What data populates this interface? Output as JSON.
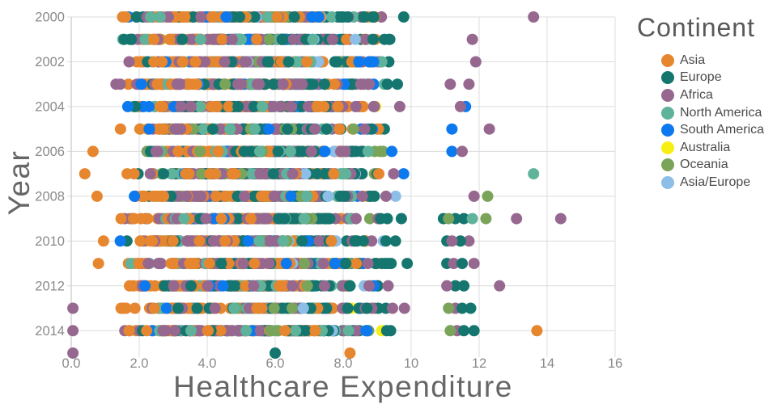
{
  "chart_data": {
    "type": "scatter",
    "variant": "strip-plot",
    "title": "",
    "xlabel": "Healthcare Expenditure",
    "ylabel": "Year",
    "legend": {
      "title": "Continent",
      "position": "top-right",
      "items": [
        {
          "label": "Asia",
          "color": "#E6862E"
        },
        {
          "label": "Europe",
          "color": "#15766F"
        },
        {
          "label": "Africa",
          "color": "#97688F"
        },
        {
          "label": "North America",
          "color": "#5FB39B"
        },
        {
          "label": "South America",
          "color": "#0C79EE"
        },
        {
          "label": "Australia",
          "color": "#F7EF13"
        },
        {
          "label": "Oceania",
          "color": "#7AA45A"
        },
        {
          "label": "Asia/Europe",
          "color": "#8CBEE8"
        }
      ]
    },
    "xlim": [
      0,
      16
    ],
    "ylim": [
      2000,
      2015
    ],
    "grid": true,
    "x_ticks": [
      {
        "value": 0,
        "label": "0.0"
      },
      {
        "value": 2,
        "label": "2.0"
      },
      {
        "value": 4,
        "label": "4.0"
      },
      {
        "value": 6,
        "label": "6.0"
      },
      {
        "value": 8,
        "label": "8.0"
      },
      {
        "value": 10,
        "label": "10"
      },
      {
        "value": 12,
        "label": "12"
      },
      {
        "value": 14,
        "label": "14"
      },
      {
        "value": 16,
        "label": "16"
      }
    ],
    "y_ticks": [
      {
        "value": 2000,
        "label": "2000"
      },
      {
        "value": 2002,
        "label": "2002"
      },
      {
        "value": 2004,
        "label": "2004"
      },
      {
        "value": 2006,
        "label": "2006"
      },
      {
        "value": 2008,
        "label": "2008"
      },
      {
        "value": 2010,
        "label": "2010"
      },
      {
        "value": 2012,
        "label": "2012"
      },
      {
        "value": 2014,
        "label": "2014"
      }
    ],
    "bulk_years": [
      2000,
      2014
    ],
    "series": [
      {
        "name": "Asia",
        "color": "#E6862E",
        "points_per_year": 45,
        "min": 1.0,
        "mode": 3.2,
        "max": 9.6
      },
      {
        "name": "Europe",
        "color": "#15766F",
        "points_per_year": 40,
        "min": 1.3,
        "mode": 6.8,
        "max": 10.0
      },
      {
        "name": "Africa",
        "color": "#97688F",
        "points_per_year": 48,
        "min": 1.2,
        "mode": 4.3,
        "max": 10.0
      },
      {
        "name": "North America",
        "color": "#5FB39B",
        "points_per_year": 17,
        "min": 1.1,
        "mode": 5.3,
        "max": 9.7
      },
      {
        "name": "South America",
        "color": "#0C79EE",
        "points_per_year": 12,
        "min": 1.3,
        "mode": 5.8,
        "max": 9.9
      },
      {
        "name": "Australia",
        "color": "#F7EF13",
        "points_per_year": 1,
        "min": 7.8,
        "mode": 8.6,
        "max": 9.4
      },
      {
        "name": "Oceania",
        "color": "#7AA45A",
        "points_per_year": 8,
        "min": 2.0,
        "mode": 5.0,
        "max": 9.9
      },
      {
        "name": "Asia/Europe",
        "color": "#8CBEE8",
        "points_per_year": 4,
        "min": 4.0,
        "mode": 7.4,
        "max": 9.8
      }
    ],
    "extra_points": [
      {
        "year": 2000,
        "continent": "Africa",
        "x": 13.6
      },
      {
        "year": 2001,
        "continent": "Africa",
        "x": 11.8
      },
      {
        "year": 2002,
        "continent": "Africa",
        "x": 11.9
      },
      {
        "year": 2003,
        "continent": "Africa",
        "x": 11.15
      },
      {
        "year": 2003,
        "continent": "Africa",
        "x": 11.7
      },
      {
        "year": 2004,
        "continent": "Africa",
        "x": 11.45
      },
      {
        "year": 2004,
        "continent": "South America",
        "x": 11.6
      },
      {
        "year": 2005,
        "continent": "South America",
        "x": 11.2
      },
      {
        "year": 2005,
        "continent": "Africa",
        "x": 12.3
      },
      {
        "year": 2006,
        "continent": "South America",
        "x": 11.2
      },
      {
        "year": 2006,
        "continent": "Africa",
        "x": 11.5
      },
      {
        "year": 2006,
        "continent": "Asia",
        "x": 0.64
      },
      {
        "year": 2007,
        "continent": "North America",
        "x": 13.6
      },
      {
        "year": 2007,
        "continent": "Asia",
        "x": 0.4
      },
      {
        "year": 2008,
        "continent": "Africa",
        "x": 11.85
      },
      {
        "year": 2008,
        "continent": "Oceania",
        "x": 12.25
      },
      {
        "year": 2008,
        "continent": "Asia",
        "x": 0.76
      },
      {
        "year": 2009,
        "continent": "Europe",
        "x": 10.95
      },
      {
        "year": 2009,
        "continent": "Oceania",
        "x": 11.1
      },
      {
        "year": 2009,
        "continent": "Europe",
        "x": 11.3
      },
      {
        "year": 2009,
        "continent": "Europe",
        "x": 11.55
      },
      {
        "year": 2009,
        "continent": "North America",
        "x": 11.8
      },
      {
        "year": 2009,
        "continent": "Oceania",
        "x": 12.2
      },
      {
        "year": 2009,
        "continent": "Africa",
        "x": 13.1
      },
      {
        "year": 2009,
        "continent": "Africa",
        "x": 14.4
      },
      {
        "year": 2010,
        "continent": "Europe",
        "x": 11.05
      },
      {
        "year": 2010,
        "continent": "Africa",
        "x": 11.2
      },
      {
        "year": 2010,
        "continent": "Europe",
        "x": 11.45
      },
      {
        "year": 2010,
        "continent": "Africa",
        "x": 11.7
      },
      {
        "year": 2010,
        "continent": "Asia",
        "x": 0.95
      },
      {
        "year": 2011,
        "continent": "Europe",
        "x": 11.05
      },
      {
        "year": 2011,
        "continent": "Africa",
        "x": 11.25
      },
      {
        "year": 2011,
        "continent": "Europe",
        "x": 11.5
      },
      {
        "year": 2011,
        "continent": "Africa",
        "x": 11.85
      },
      {
        "year": 2011,
        "continent": "Asia",
        "x": 0.8
      },
      {
        "year": 2012,
        "continent": "Africa",
        "x": 11.05
      },
      {
        "year": 2012,
        "continent": "Europe",
        "x": 11.3
      },
      {
        "year": 2012,
        "continent": "Europe",
        "x": 11.55
      },
      {
        "year": 2012,
        "continent": "Africa",
        "x": 12.6
      },
      {
        "year": 2013,
        "continent": "Oceania",
        "x": 11.1
      },
      {
        "year": 2013,
        "continent": "Africa",
        "x": 11.3
      },
      {
        "year": 2013,
        "continent": "Europe",
        "x": 11.5
      },
      {
        "year": 2013,
        "continent": "Europe",
        "x": 11.75
      },
      {
        "year": 2013,
        "continent": "Africa",
        "x": 0.05
      },
      {
        "year": 2014,
        "continent": "Oceania",
        "x": 11.15
      },
      {
        "year": 2014,
        "continent": "Africa",
        "x": 11.35
      },
      {
        "year": 2014,
        "continent": "Europe",
        "x": 11.55
      },
      {
        "year": 2014,
        "continent": "Europe",
        "x": 11.85
      },
      {
        "year": 2014,
        "continent": "Asia",
        "x": 13.7
      },
      {
        "year": 2014,
        "continent": "Africa",
        "x": 0.05
      },
      {
        "year": 2015,
        "continent": "Africa",
        "x": 0.05
      },
      {
        "year": 2015,
        "continent": "Europe",
        "x": 6.0
      },
      {
        "year": 2015,
        "continent": "Asia",
        "x": 8.2
      }
    ],
    "marker_radius": 7,
    "seed": 5,
    "colors": {
      "background": "#ffffff",
      "grid": "#dcdcdc",
      "axis": "#c9c9c9",
      "tick_text": "#8a8a8a",
      "axis_label_text": "#666666",
      "legend_title_text": "#595959",
      "legend_item_text": "#4b4b4b"
    }
  }
}
